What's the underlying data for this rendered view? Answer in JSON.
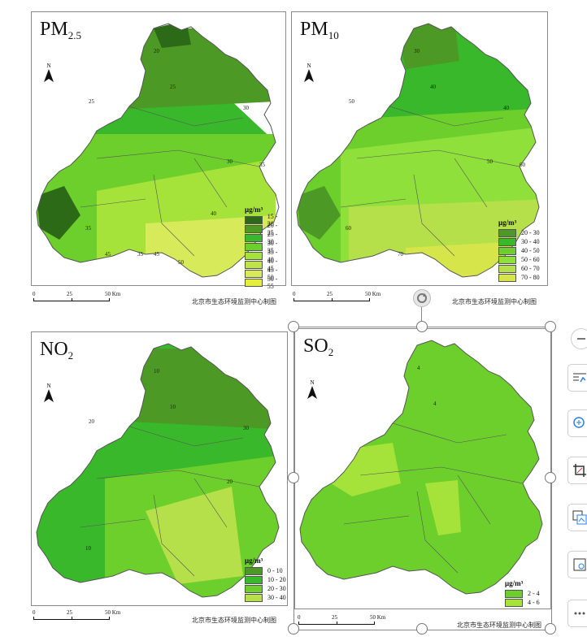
{
  "panels": [
    {
      "id": "pm25",
      "title_main": "PM",
      "title_sub": "2.5",
      "legend_unit": "μg/m³",
      "legend": [
        {
          "label": "15 - 20",
          "color": "#2d6a18"
        },
        {
          "label": "20 - 25",
          "color": "#4c9a25"
        },
        {
          "label": "25 - 30",
          "color": "#38b82a"
        },
        {
          "label": "30 - 35",
          "color": "#6ccf2c"
        },
        {
          "label": "35 - 40",
          "color": "#a6e33a"
        },
        {
          "label": "40 - 45",
          "color": "#bfe44a"
        },
        {
          "label": "45 - 50",
          "color": "#d6ea5a"
        },
        {
          "label": "50 - 55",
          "color": "#e4ee3c"
        }
      ],
      "contour_labels": [
        "20",
        "25",
        "25",
        "30",
        "30",
        "35",
        "35",
        "35",
        "40",
        "45",
        "45",
        "50"
      ]
    },
    {
      "id": "pm10",
      "title_main": "PM",
      "title_sub": "10",
      "legend_unit": "μg/m³",
      "legend": [
        {
          "label": "20 - 30",
          "color": "#4c9a25"
        },
        {
          "label": "30 - 40",
          "color": "#38b82a"
        },
        {
          "label": "40 - 50",
          "color": "#6ccf2c"
        },
        {
          "label": "50 - 60",
          "color": "#8fe03a"
        },
        {
          "label": "60 - 70",
          "color": "#b6e04a"
        },
        {
          "label": "70 - 80",
          "color": "#d6e64a"
        }
      ],
      "contour_labels": [
        "30",
        "40",
        "50",
        "40",
        "50",
        "60",
        "70",
        "60"
      ]
    },
    {
      "id": "no2",
      "title_main": "NO",
      "title_sub": "2",
      "legend_unit": "μg/m³",
      "legend": [
        {
          "label": "0 - 10",
          "color": "#4c9a25"
        },
        {
          "label": "10 - 20",
          "color": "#38b82a"
        },
        {
          "label": "20 - 30",
          "color": "#6ccf2c"
        },
        {
          "label": "30 - 40",
          "color": "#b6e04a"
        }
      ],
      "contour_labels": [
        "10",
        "10",
        "20",
        "30",
        "20",
        "10"
      ]
    },
    {
      "id": "so2",
      "title_main": "SO",
      "title_sub": "2",
      "legend_unit": "μg/m³",
      "legend": [
        {
          "label": "2 - 4",
          "color": "#6ccf2c"
        },
        {
          "label": "4 - 6",
          "color": "#a6e33a"
        }
      ],
      "contour_labels": [
        "4",
        "4"
      ]
    }
  ],
  "north_label": "N",
  "scale": {
    "t0": "0",
    "t1": "25",
    "t2": "50 Km"
  },
  "credit": "北京市生态环境监测中心制图",
  "toolbar_icons": [
    "minus-icon",
    "chart-icon",
    "zoom-in-icon",
    "crop-icon",
    "replace-image-icon",
    "image-settings-icon",
    "more-icon"
  ]
}
